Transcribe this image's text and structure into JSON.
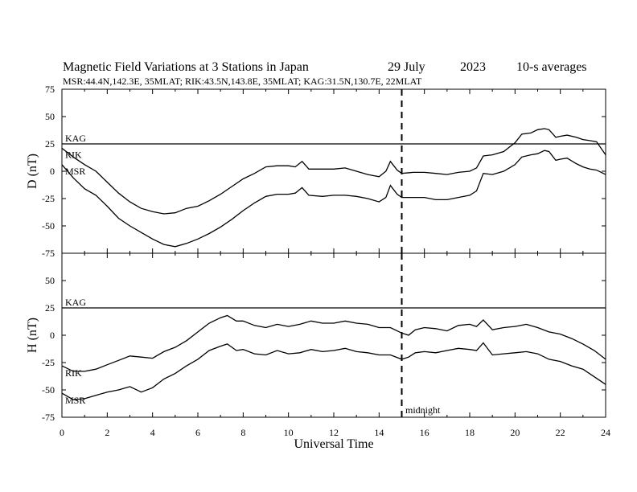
{
  "title": "Magnetic Field Variations at 3 Stations in Japan",
  "date": "29 July",
  "year": "2023",
  "averaging": "10-s averages",
  "subtitle": "MSR:44.4N,142.3E, 35MLAT;  RIK:43.5N,143.8E, 35MLAT;  KAG:31.5N,130.7E, 22MLAT",
  "xlabel": "Universal Time",
  "annotation": "midnight",
  "chart_data": [
    {
      "type": "line",
      "panel": "D",
      "ylabel": "D (nT)",
      "xlim": [
        0,
        24
      ],
      "ylim": [
        -75,
        75
      ],
      "xticks": [
        0,
        2,
        4,
        6,
        8,
        10,
        12,
        14,
        16,
        18,
        20,
        22,
        24
      ],
      "yticks": [
        75,
        50,
        25,
        0,
        -25,
        -50,
        -75
      ],
      "vline_x": 15,
      "series": [
        {
          "name": "KAG",
          "x": [
            0,
            24
          ],
          "y": [
            25,
            25
          ]
        },
        {
          "name": "RIK",
          "x": [
            0,
            0.5,
            1,
            1.5,
            2,
            2.5,
            3,
            3.5,
            4,
            4.5,
            5,
            5.5,
            6,
            6.5,
            7,
            7.5,
            8,
            8.5,
            9,
            9.5,
            10,
            10.3,
            10.6,
            10.9,
            11.5,
            12,
            12.5,
            13,
            13.5,
            14,
            14.3,
            14.5,
            14.8,
            15,
            15.5,
            16,
            16.5,
            17,
            17.5,
            18,
            18.3,
            18.6,
            19,
            19.5,
            20,
            20.3,
            20.7,
            21,
            21.3,
            21.5,
            21.8,
            22,
            22.3,
            22.7,
            23,
            23.3,
            23.6,
            24
          ],
          "y": [
            21,
            13,
            6,
            0,
            -10,
            -20,
            -28,
            -34,
            -37,
            -39,
            -38,
            -34,
            -32,
            -27,
            -21,
            -14,
            -7,
            -2,
            4,
            5,
            5,
            4,
            9,
            2,
            2,
            2,
            3,
            0,
            -3,
            -5,
            0,
            9,
            1,
            -2,
            -1,
            -1,
            -2,
            -3,
            -1,
            0,
            3,
            14,
            15,
            18,
            26,
            34,
            35,
            38,
            39,
            38,
            31,
            32,
            33,
            31,
            29,
            28,
            27,
            15
          ]
        },
        {
          "name": "MSR",
          "x": [
            0,
            0.5,
            1,
            1.5,
            2,
            2.5,
            3,
            3.5,
            4,
            4.5,
            5,
            5.5,
            6,
            6.5,
            7,
            7.5,
            8,
            8.5,
            9,
            9.5,
            10,
            10.3,
            10.6,
            10.9,
            11.5,
            12,
            12.5,
            13,
            13.5,
            14,
            14.3,
            14.5,
            14.8,
            15,
            15.5,
            16,
            16.5,
            17,
            17.5,
            18,
            18.3,
            18.6,
            19,
            19.5,
            20,
            20.3,
            20.7,
            21,
            21.3,
            21.5,
            21.8,
            22,
            22.3,
            22.7,
            23,
            23.3,
            23.6,
            24
          ],
          "y": [
            6,
            -6,
            -16,
            -22,
            -32,
            -43,
            -50,
            -56,
            -62,
            -67,
            -69,
            -66,
            -62,
            -57,
            -51,
            -44,
            -36,
            -29,
            -23,
            -21,
            -21,
            -20,
            -15,
            -22,
            -23,
            -22,
            -22,
            -23,
            -25,
            -28,
            -24,
            -13,
            -21,
            -24,
            -24,
            -24,
            -26,
            -26,
            -24,
            -22,
            -18,
            -2,
            -3,
            0,
            6,
            13,
            15,
            16,
            19,
            18,
            10,
            11,
            12,
            7,
            4,
            2,
            1,
            -3
          ]
        }
      ]
    },
    {
      "type": "line",
      "panel": "H",
      "ylabel": "H (nT)",
      "xlim": [
        0,
        24
      ],
      "ylim": [
        -75,
        75
      ],
      "xticks": [
        0,
        2,
        4,
        6,
        8,
        10,
        12,
        14,
        16,
        18,
        20,
        22,
        24
      ],
      "yticks": [
        75,
        50,
        25,
        0,
        -25,
        -50,
        -75
      ],
      "vline_x": 15,
      "series": [
        {
          "name": "KAG",
          "x": [
            0,
            24
          ],
          "y": [
            25,
            25
          ]
        },
        {
          "name": "RIK",
          "x": [
            0,
            0.5,
            1,
            1.5,
            2,
            2.5,
            3,
            3.5,
            4,
            4.5,
            5,
            5.5,
            6,
            6.5,
            7,
            7.3,
            7.7,
            8,
            8.5,
            9,
            9.5,
            10,
            10.5,
            11,
            11.5,
            12,
            12.5,
            13,
            13.5,
            14,
            14.5,
            15,
            15.3,
            15.6,
            16,
            16.5,
            17,
            17.5,
            18,
            18.3,
            18.6,
            19,
            19.5,
            20,
            20.5,
            21,
            21.5,
            22,
            22.5,
            23,
            23.5,
            24
          ],
          "y": [
            -28,
            -33,
            -33,
            -31,
            -27,
            -23,
            -19,
            -20,
            -21,
            -15,
            -11,
            -5,
            3,
            11,
            16,
            18,
            13,
            13,
            9,
            7,
            10,
            8,
            10,
            13,
            11,
            11,
            13,
            11,
            10,
            7,
            7,
            2,
            0,
            5,
            7,
            6,
            4,
            9,
            10,
            8,
            14,
            5,
            7,
            8,
            10,
            7,
            3,
            1,
            -3,
            -8,
            -14,
            -22
          ]
        },
        {
          "name": "MSR",
          "x": [
            0,
            0.5,
            1,
            1.5,
            2,
            2.5,
            3,
            3.5,
            4,
            4.5,
            5,
            5.5,
            6,
            6.5,
            7,
            7.3,
            7.7,
            8,
            8.5,
            9,
            9.5,
            10,
            10.5,
            11,
            11.5,
            12,
            12.5,
            13,
            13.5,
            14,
            14.5,
            15,
            15.3,
            15.6,
            16,
            16.5,
            17,
            17.5,
            18,
            18.3,
            18.6,
            19,
            19.5,
            20,
            20.5,
            21,
            21.5,
            22,
            22.5,
            23,
            23.5,
            24
          ],
          "y": [
            -53,
            -59,
            -58,
            -55,
            -52,
            -50,
            -47,
            -52,
            -48,
            -40,
            -35,
            -28,
            -22,
            -14,
            -10,
            -8,
            -14,
            -13,
            -17,
            -18,
            -14,
            -17,
            -16,
            -13,
            -15,
            -14,
            -12,
            -15,
            -16,
            -18,
            -18,
            -22,
            -20,
            -16,
            -15,
            -16,
            -14,
            -12,
            -13,
            -14,
            -7,
            -18,
            -17,
            -16,
            -15,
            -17,
            -22,
            -24,
            -28,
            -31,
            -38,
            -45
          ]
        }
      ]
    }
  ]
}
